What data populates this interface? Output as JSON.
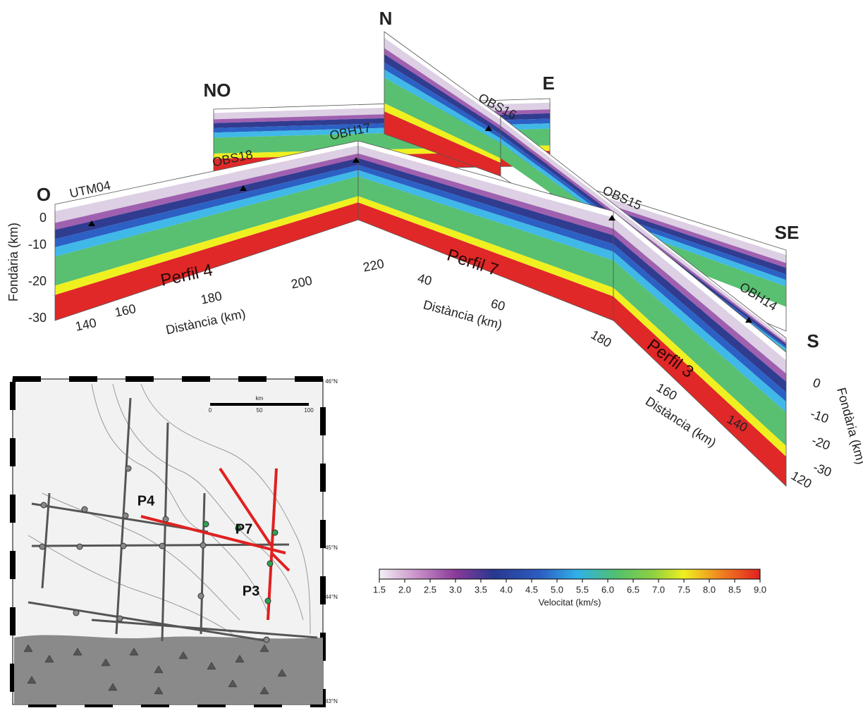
{
  "panel": {
    "orientation_labels": [
      "O",
      "NO",
      "N",
      "E",
      "SE",
      "S"
    ],
    "stations": [
      "UTM04",
      "OBS18",
      "OBH17",
      "OBS16",
      "OBS15",
      "OBH14"
    ],
    "profiles": [
      "Perfil 4",
      "Perfil 7",
      "Perfil 3"
    ],
    "depth_axis": {
      "title": "Fondària (km)",
      "ticks": [
        "0",
        "-10",
        "-20",
        "-30"
      ]
    },
    "depth_axis_right": {
      "title": "Fondària (km)",
      "ticks": [
        "0",
        "-10",
        "-20",
        "-30"
      ]
    },
    "perfil4_distance": {
      "title": "Distància (km)",
      "ticks": [
        "140",
        "160",
        "180",
        "200",
        "220"
      ]
    },
    "perfil7_distance": {
      "title": "Distància (km)",
      "ticks": [
        "40",
        "60"
      ]
    },
    "perfil3_distance": {
      "title": "Distància (km)",
      "ticks": [
        "180",
        "160",
        "140",
        "120"
      ]
    }
  },
  "colorbar": {
    "title": "Velocitat (km/s)",
    "ticks": [
      "1.5",
      "2.0",
      "2.5",
      "3.0",
      "3.5",
      "4.0",
      "4.5",
      "5.0",
      "5.5",
      "6.0",
      "6.5",
      "7.0",
      "7.5",
      "8.0",
      "8.5",
      "9.0"
    ]
  },
  "map": {
    "profile_labels": [
      "P4",
      "P7",
      "P3"
    ],
    "scale": {
      "unit": "km",
      "ticks": [
        "0",
        "50",
        "100"
      ]
    },
    "latitudes": [
      "46°N",
      "45°N",
      "44°N",
      "43°N"
    ]
  }
}
